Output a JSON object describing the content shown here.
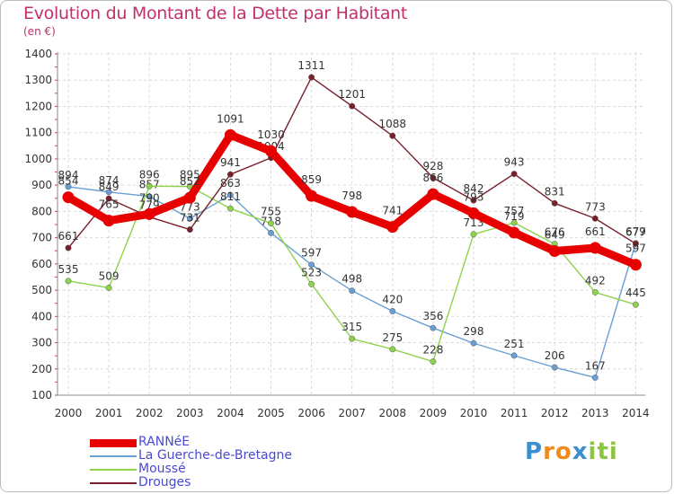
{
  "header": {
    "title": "Evolution du Montant de la Dette par Habitant",
    "unit": "(en €)"
  },
  "logo": {
    "text": "Proxiti",
    "letters": [
      {
        "ch": "P",
        "color": "#3a8fd0"
      },
      {
        "ch": "r",
        "color": "#f08a1c"
      },
      {
        "ch": "o",
        "color": "#f08a1c"
      },
      {
        "ch": "x",
        "color": "#3a8fd0"
      },
      {
        "ch": "i",
        "color": "#8cc63f"
      },
      {
        "ch": "t",
        "color": "#8cc63f"
      },
      {
        "ch": "i",
        "color": "#8cc63f"
      }
    ]
  },
  "chart_data": {
    "type": "line",
    "title": "Evolution du Montant de la Dette par Habitant",
    "subtitle": "(en €)",
    "xlabel": "",
    "ylabel": "",
    "ylim": [
      100,
      1400
    ],
    "yticks": [
      100,
      200,
      300,
      400,
      500,
      600,
      700,
      800,
      900,
      1000,
      1100,
      1200,
      1300,
      1400
    ],
    "grid": true,
    "legend_position": "bottom-left",
    "x": [
      "2000",
      "2001",
      "2002",
      "2003",
      "2004",
      "2005",
      "2006",
      "2007",
      "2008",
      "2009",
      "2010",
      "2011",
      "2012",
      "2013",
      "2014"
    ],
    "series": [
      {
        "name": "RANNéE",
        "color": "#e60000",
        "values": [
          854,
          765,
          790,
          852,
          1091,
          1030,
          859,
          798,
          741,
          866,
          793,
          719,
          649,
          661,
          597
        ]
      },
      {
        "name": "La Guerche-de-Bretagne",
        "color": "#6a9fd4",
        "values": [
          894,
          874,
          857,
          773,
          863,
          718,
          597,
          498,
          420,
          356,
          298,
          251,
          206,
          167,
          679
        ]
      },
      {
        "name": "Moussé",
        "color": "#8ed34a",
        "values": [
          535,
          509,
          896,
          895,
          811,
          755,
          523,
          315,
          275,
          228,
          713,
          757,
          676,
          492,
          445
        ]
      },
      {
        "name": "Drouges",
        "color": "#7a1f2a",
        "values": [
          661,
          849,
          779,
          731,
          941,
          1004,
          1311,
          1201,
          1088,
          928,
          842,
          943,
          831,
          773,
          677
        ]
      }
    ]
  }
}
